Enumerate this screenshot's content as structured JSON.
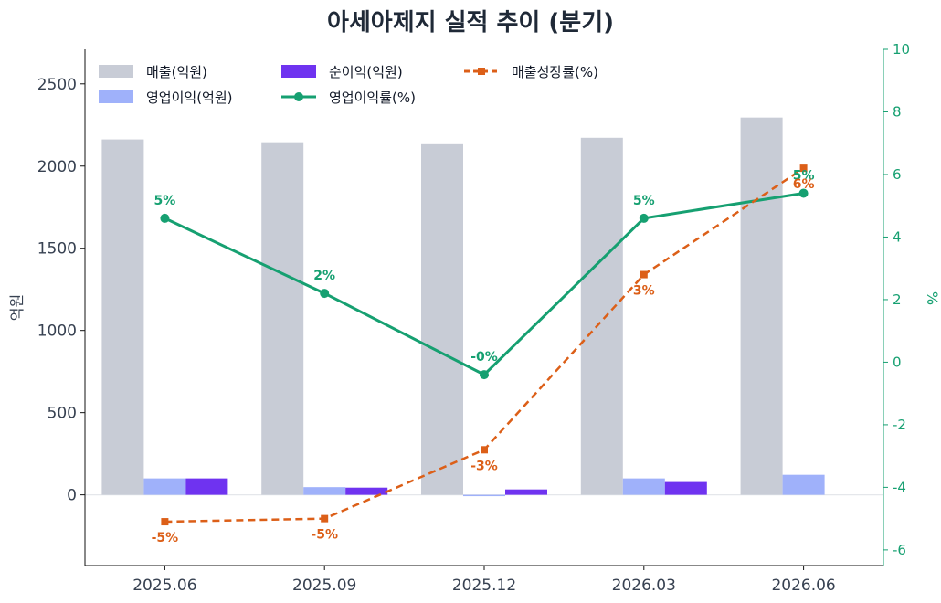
{
  "title": "아세아제지 실적 추이 (분기)",
  "chart_data": {
    "type": "bar",
    "categories": [
      "2025.06",
      "2025.09",
      "2025.12",
      "2026.03",
      "2026.06"
    ],
    "ylabel": "억원",
    "ylabel_right": "%",
    "ylim": [
      -430,
      2710
    ],
    "ylim_right": [
      -6.5,
      10
    ],
    "yticks": [
      0,
      500,
      1000,
      1500,
      2000,
      2500
    ],
    "yticks_right": [
      -6,
      -4,
      -2,
      0,
      2,
      4,
      6,
      8,
      10
    ],
    "legend_position": "top-left",
    "bar_series": [
      {
        "name": "매출(억원)",
        "color": "#c8ccd6",
        "values": [
          2162,
          2145,
          2133,
          2172,
          2295
        ]
      },
      {
        "name": "영업이익(억원)",
        "color": "#9fb1fa",
        "values": [
          100,
          47,
          -8,
          100,
          122
        ]
      },
      {
        "name": "순이익(억원)",
        "color": "#6f33f0",
        "values": [
          100,
          44,
          33,
          78,
          0
        ]
      }
    ],
    "line_series": [
      {
        "name": "영업이익률(%)",
        "color": "#16a071",
        "style": "solid",
        "marker": "circle",
        "values": [
          4.6,
          2.2,
          -0.4,
          4.6,
          5.4
        ],
        "labels": [
          "5%",
          "2%",
          "-0%",
          "5%",
          "5%"
        ]
      },
      {
        "name": "매출성장률(%)",
        "color": "#dc5f18",
        "style": "dashed",
        "marker": "square",
        "values": [
          -5.1,
          -5.0,
          -2.8,
          2.8,
          6.2
        ],
        "labels": [
          "-5%",
          "-5%",
          "-3%",
          "3%",
          "6%"
        ]
      }
    ]
  }
}
